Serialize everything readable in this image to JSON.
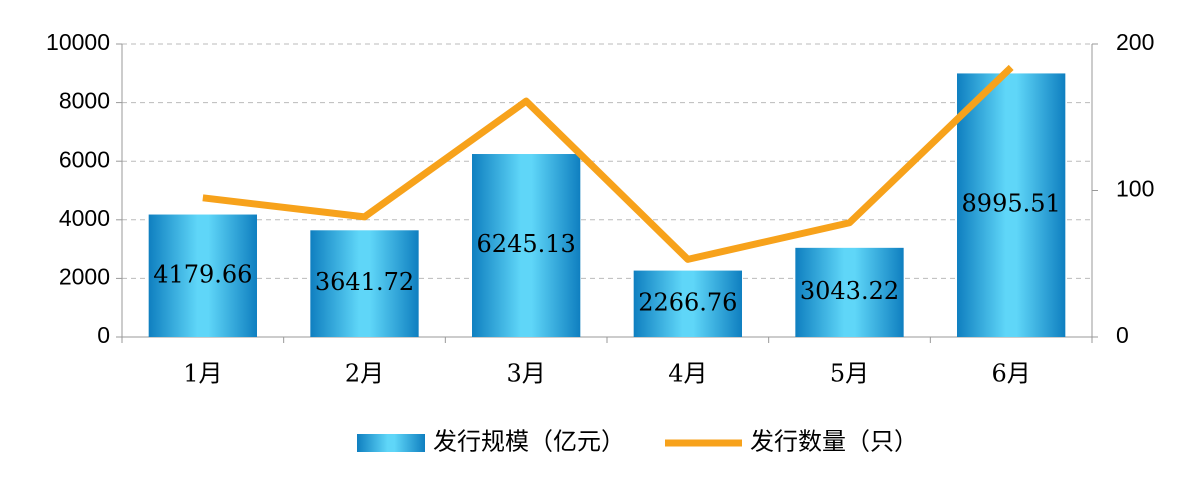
{
  "chart_data": {
    "type": "bar",
    "categories": [
      "1月",
      "2月",
      "3月",
      "4月",
      "5月",
      "6月"
    ],
    "series": [
      {
        "name": "发行规模（亿元）",
        "type": "bar",
        "color": "#1e9ad8",
        "values": [
          4179.66,
          3641.72,
          6245.13,
          2266.76,
          3043.22,
          8995.51
        ]
      },
      {
        "name": "发行数量（只）",
        "type": "line",
        "axis": "y2",
        "color": "#f7a21b",
        "values": [
          95,
          82,
          161,
          53,
          78,
          184
        ]
      }
    ],
    "ylim": [
      0,
      10000
    ],
    "yticks": [
      0,
      2000,
      4000,
      6000,
      8000,
      10000
    ],
    "y2lim": [
      0,
      200
    ],
    "y2ticks": [
      0,
      100,
      200
    ],
    "grid": true,
    "legend": "bottom"
  }
}
